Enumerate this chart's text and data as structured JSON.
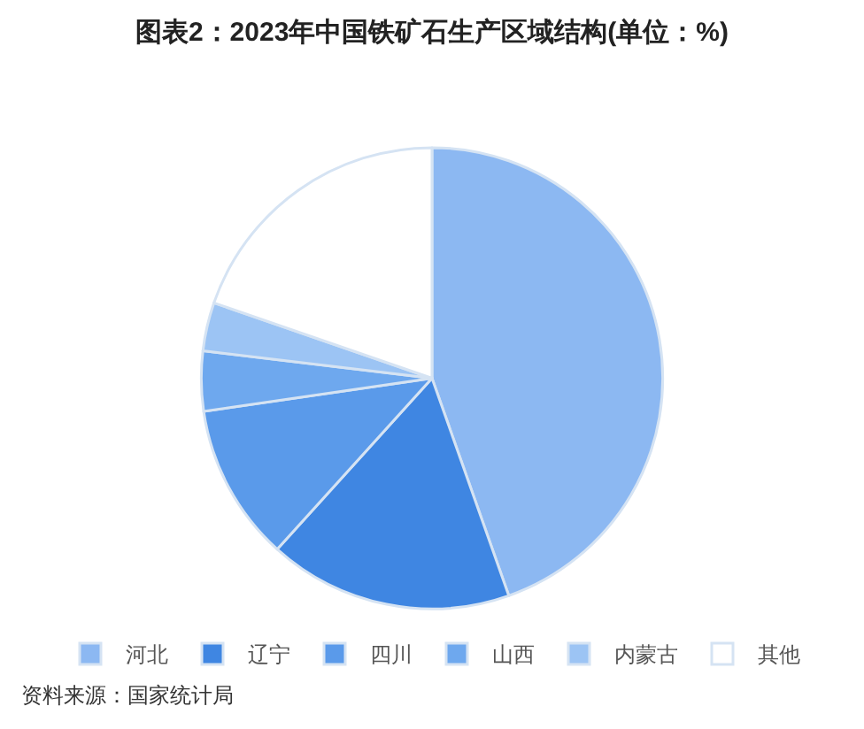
{
  "chart_data": {
    "type": "pie",
    "title": "图表2：2023年中国铁矿石生产区域结构(单位：%)",
    "categories": [
      "河北",
      "辽宁",
      "四川",
      "山西",
      "内蒙古",
      "其他"
    ],
    "values": [
      44.6,
      17.1,
      11,
      4.2,
      3.4,
      19.7
    ],
    "colors": [
      "#8cb8f2",
      "#3f86e2",
      "#5a9aea",
      "#6ea8ee",
      "#9cc4f4",
      "#ffffff"
    ],
    "legend": "bottom",
    "annotations": [
      "资料来源：国家统计局"
    ]
  }
}
